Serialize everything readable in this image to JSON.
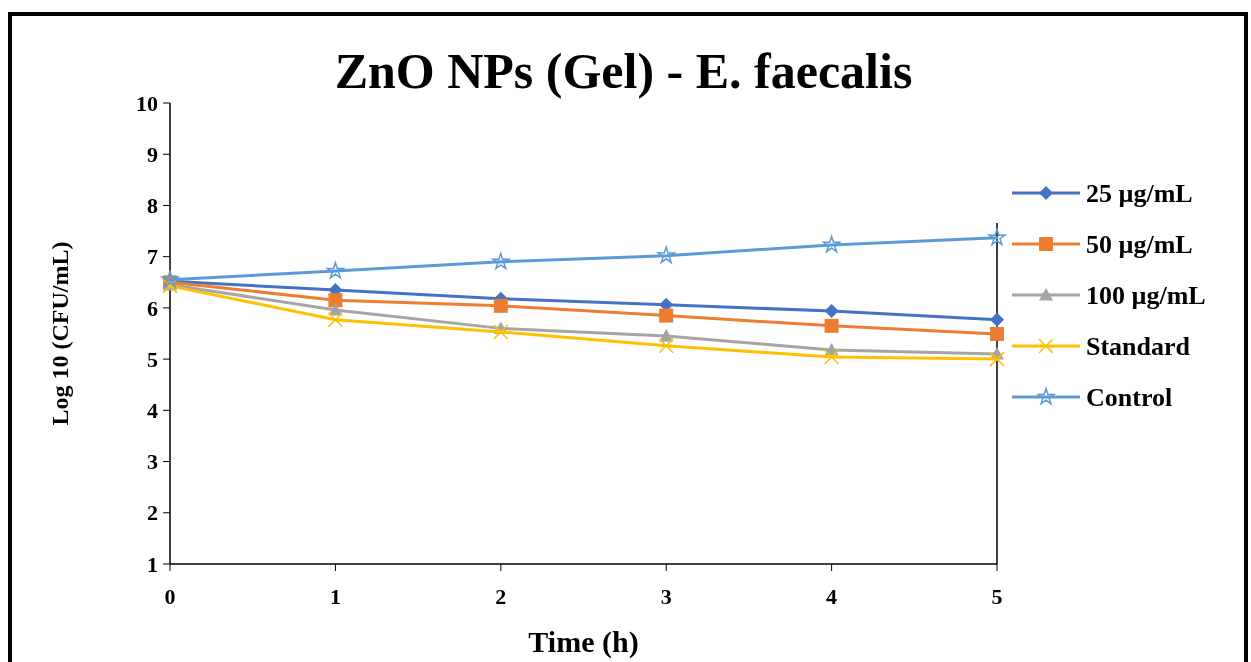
{
  "chart_data": {
    "type": "line",
    "title": "ZnO NPs (Gel) - E. faecalis",
    "xlabel": "Time (h)",
    "ylabel": "Log 10 (CFU/mL)",
    "x": [
      0,
      1,
      2,
      3,
      4,
      5
    ],
    "xlim": [
      0,
      5
    ],
    "xticks": [
      0,
      1,
      2,
      3,
      4,
      5
    ],
    "ylim": [
      1,
      10
    ],
    "yticks": [
      1,
      2,
      3,
      4,
      5,
      6,
      7,
      8,
      9,
      10
    ],
    "grid": false,
    "legend": "right",
    "line_style": "solid",
    "series": [
      {
        "name": "25 µg/mL",
        "color": "#4472c4",
        "marker": "diamond",
        "values": [
          6.52,
          6.35,
          6.18,
          6.06,
          5.94,
          5.77
        ]
      },
      {
        "name": "50 µg/mL",
        "color": "#ed7d31",
        "marker": "square",
        "values": [
          6.5,
          6.15,
          6.04,
          5.85,
          5.65,
          5.49
        ]
      },
      {
        "name": "100 µg/mL",
        "color": "#a5a5a5",
        "marker": "triangle",
        "values": [
          6.45,
          5.96,
          5.6,
          5.45,
          5.18,
          5.1
        ]
      },
      {
        "name": "Standard",
        "color": "#ffc000",
        "marker": "cross",
        "values": [
          6.43,
          5.77,
          5.53,
          5.26,
          5.04,
          5.0
        ]
      },
      {
        "name": "Control",
        "color": "#5b9bd5",
        "marker": "star",
        "values": [
          6.55,
          6.72,
          6.9,
          7.02,
          7.23,
          7.37
        ]
      }
    ]
  }
}
